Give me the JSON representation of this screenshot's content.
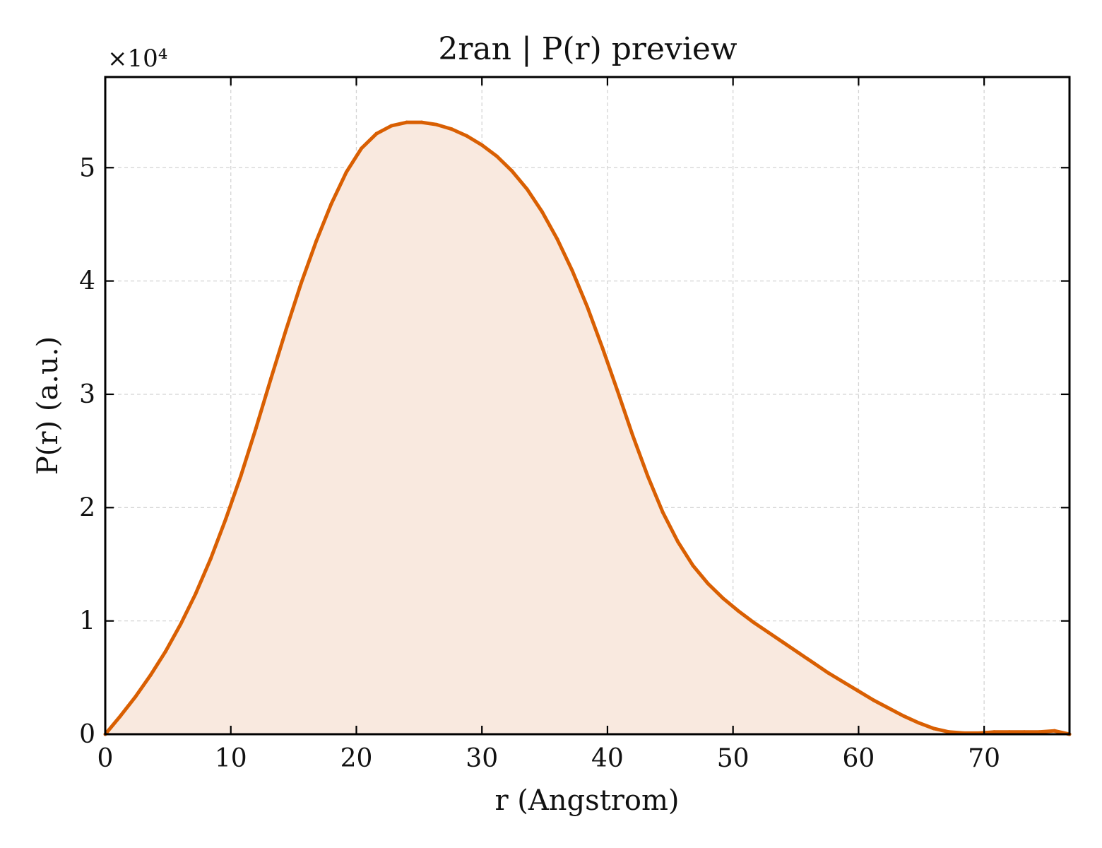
{
  "chart_data": {
    "type": "area",
    "title": "2ran | P(r) preview",
    "xlabel": "r (Angstrom)",
    "ylabel": "P(r) (a.u.)",
    "y_multiplier": "×10⁴",
    "xlim": [
      0,
      76.8
    ],
    "ylim": [
      0,
      5.8
    ],
    "xticks": [
      0,
      10,
      20,
      30,
      40,
      50,
      60,
      70
    ],
    "yticks": [
      0,
      1,
      2,
      3,
      4,
      5
    ],
    "grid": true,
    "line_color": "#d95f02",
    "fill_color": "#f9e9df",
    "series": [
      {
        "x": [
          0,
          1.2,
          2.4,
          3.6,
          4.8,
          6,
          7.2,
          8.4,
          9.6,
          10.8,
          12,
          13.2,
          14.4,
          15.6,
          16.8,
          18,
          19.2,
          20.4,
          21.6,
          22.8,
          24,
          25.2,
          26.4,
          27.6,
          28.8,
          30,
          31.2,
          32.4,
          33.6,
          34.8,
          36,
          37.2,
          38.4,
          39.6,
          40.8,
          42,
          43.2,
          44.4,
          45.6,
          46.8,
          48,
          49.2,
          50.4,
          51.6,
          52.8,
          54,
          55.2,
          56.4,
          57.6,
          58.8,
          60,
          61.2,
          62.4,
          63.6,
          64.8,
          66,
          67.2,
          68.4,
          69.6,
          70.8,
          72,
          73.2,
          74.4,
          75.6,
          76.8
        ],
        "y": [
          0,
          0.16,
          0.33,
          0.52,
          0.73,
          0.97,
          1.24,
          1.55,
          1.9,
          2.28,
          2.7,
          3.14,
          3.57,
          3.98,
          4.35,
          4.68,
          4.96,
          5.17,
          5.3,
          5.37,
          5.4,
          5.4,
          5.38,
          5.34,
          5.28,
          5.2,
          5.1,
          4.97,
          4.81,
          4.61,
          4.37,
          4.09,
          3.77,
          3.41,
          3.03,
          2.64,
          2.28,
          1.96,
          1.7,
          1.49,
          1.33,
          1.2,
          1.09,
          0.99,
          0.9,
          0.81,
          0.72,
          0.63,
          0.54,
          0.46,
          0.38,
          0.3,
          0.23,
          0.16,
          0.1,
          0.05,
          0.02,
          0.01,
          0.01,
          0.02,
          0.02,
          0.02,
          0.02,
          0.03,
          0
        ]
      }
    ]
  }
}
